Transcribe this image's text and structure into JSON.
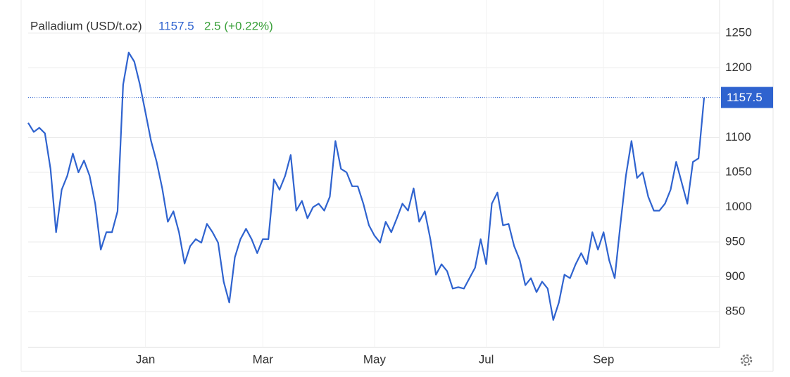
{
  "chart_data": {
    "type": "line",
    "title": "Palladium (USD/t.oz)",
    "change": "2.5 (+0.22%)",
    "series": [
      {
        "name": "Palladium",
        "color": "#2f63cf",
        "values": [
          1121,
          1108,
          1114,
          1106,
          1055,
          964,
          1025,
          1045,
          1077,
          1050,
          1067,
          1045,
          1005,
          939,
          964,
          964,
          994,
          1176,
          1222,
          1209,
          1176,
          1136,
          1095,
          1065,
          1027,
          979,
          994,
          964,
          919,
          944,
          954,
          949,
          976,
          964,
          949,
          893,
          863,
          928,
          954,
          969,
          954,
          934,
          954,
          954,
          1040,
          1025,
          1045,
          1075,
          995,
          1009,
          984,
          1000,
          1005,
          995,
          1015,
          1095,
          1055,
          1050,
          1030,
          1030,
          1005,
          974,
          959,
          949,
          979,
          964,
          984,
          1005,
          995,
          1027,
          979,
          994,
          954,
          903,
          918,
          908,
          883,
          885,
          883,
          898,
          913,
          954,
          918,
          1005,
          1021,
          974,
          976,
          944,
          924,
          888,
          898,
          878,
          893,
          883,
          838,
          863,
          903,
          898,
          918,
          934,
          918,
          964,
          939,
          964,
          924,
          898,
          974,
          1045,
          1095,
          1042,
          1050,
          1015,
          995,
          995,
          1005,
          1025,
          1065,
          1035,
          1005,
          1065,
          1070,
          1157.5
        ]
      }
    ],
    "categories": [
      null,
      null,
      null,
      null,
      null,
      null,
      null,
      null,
      null,
      null,
      null,
      null,
      null,
      null,
      null,
      null,
      null,
      null,
      null,
      null,
      null,
      "Jan",
      null,
      null,
      null,
      null,
      null,
      null,
      null,
      null,
      null,
      null,
      null,
      null,
      null,
      null,
      null,
      null,
      null,
      null,
      null,
      null,
      "Mar",
      null,
      null,
      null,
      null,
      null,
      null,
      null,
      null,
      null,
      null,
      null,
      null,
      null,
      null,
      null,
      null,
      null,
      null,
      null,
      "May",
      null,
      null,
      null,
      null,
      null,
      null,
      null,
      null,
      null,
      null,
      null,
      null,
      null,
      null,
      null,
      null,
      null,
      null,
      null,
      "Jul",
      null,
      null,
      null,
      null,
      null,
      null,
      null,
      null,
      null,
      null,
      null,
      null,
      null,
      null,
      null,
      null,
      null,
      null,
      null,
      null,
      "Sep",
      null,
      null,
      null,
      null,
      null,
      null,
      null,
      null,
      null,
      null,
      null,
      null,
      null,
      null,
      null,
      null,
      null,
      null
    ],
    "ylim": [
      798.5,
      1297.5
    ],
    "yticks": [
      850,
      900,
      950,
      1000,
      1050,
      1100,
      1200,
      1250
    ],
    "grid": true
  }
}
